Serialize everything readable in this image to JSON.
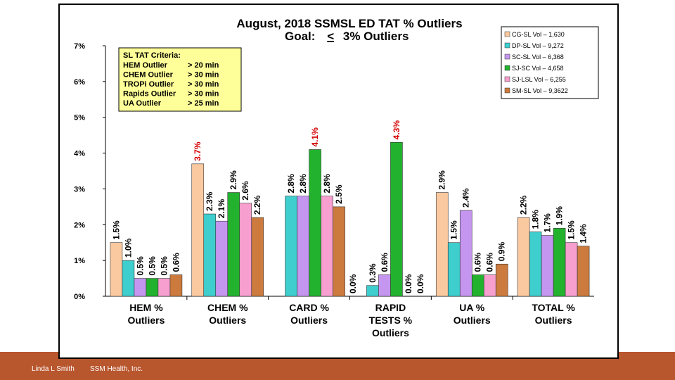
{
  "footer": {
    "author": "Linda L Smith",
    "org": "SSM Health, Inc."
  },
  "colors": {
    "band": "#b8562e",
    "series": [
      "#fbc9a0",
      "#3ecece",
      "#c596f0",
      "#22b22e",
      "#f79fce",
      "#cc7a3d"
    ],
    "label": "#000000",
    "label_high": "#d40000"
  },
  "criteria": {
    "title": "SL TAT Criteria:",
    "rows": [
      [
        "HEM Outlier",
        "> 20 min"
      ],
      [
        "CHEM Outlier",
        "> 30 min"
      ],
      [
        "TROPi Outlier",
        "> 30 min"
      ],
      [
        "Rapids Outlier",
        "> 30 min"
      ],
      [
        "UA Outlier",
        "> 25 min"
      ]
    ]
  },
  "chart_data": {
    "type": "bar",
    "title": "August, 2018   SSMSL ED TAT %  Outliers",
    "subtitle_prefix": "Goal:",
    "subtitle_symbol": "<",
    "subtitle_rest": "3%  Outliers",
    "ylim": [
      0,
      7
    ],
    "yticks": [
      "0%",
      "1%",
      "2%",
      "3%",
      "4%",
      "5%",
      "6%",
      "7%"
    ],
    "high_threshold": 3.0,
    "categories": [
      [
        "HEM %",
        "Outliers"
      ],
      [
        "CHEM %",
        "Outliers"
      ],
      [
        "CARD %",
        "Outliers"
      ],
      [
        "RAPID",
        "TESTS %",
        "Outliers"
      ],
      [
        "UA %",
        "Outliers"
      ],
      [
        "TOTAL %",
        "Outliers"
      ]
    ],
    "series": [
      {
        "name": "CG-SL  Vol – 1,630",
        "values": [
          1.5,
          3.7,
          null,
          null,
          2.9,
          2.2
        ],
        "labels": [
          "1.5%",
          "3.7%",
          "",
          "",
          "2.9%",
          "2.2%"
        ]
      },
      {
        "name": "DP-SL  Vol – 9,272",
        "values": [
          1.0,
          2.3,
          2.8,
          0.3,
          1.5,
          1.8
        ],
        "labels": [
          "1.0%",
          "2.3%",
          "2.8%",
          "0.3%",
          "1.5%",
          "1.8%"
        ]
      },
      {
        "name": "SC-SL  Vol – 6,368",
        "values": [
          0.5,
          2.1,
          2.8,
          0.6,
          2.4,
          1.7
        ],
        "labels": [
          "0.5%",
          "2.1%",
          "2.8%",
          "0.6%",
          "2.4%",
          "1.7%"
        ]
      },
      {
        "name": "SJ-SC  Vol – 4,658",
        "values": [
          0.5,
          2.9,
          4.1,
          4.3,
          0.6,
          1.9
        ],
        "labels": [
          "0.5%",
          "2.9%",
          "4.1%",
          "4.3%",
          "0.6%",
          "1.9%"
        ]
      },
      {
        "name": "SJ-LSL  Vol – 6,255",
        "values": [
          0.5,
          2.6,
          2.8,
          0.0,
          0.6,
          1.5
        ],
        "labels": [
          "0.5%",
          "2.6%",
          "2.8%",
          "0.0%",
          "0.6%",
          "1.5%"
        ]
      },
      {
        "name": "SM-SL  Vol – 9,3622",
        "values": [
          0.6,
          2.2,
          2.5,
          0.0,
          0.9,
          1.4
        ],
        "labels": [
          "0.6%",
          "2.2%",
          "2.5%",
          "0.0%",
          "0.9%",
          "1.4%"
        ]
      }
    ],
    "extra_labels": [
      {
        "category": 3,
        "text": "0.0%"
      }
    ]
  }
}
